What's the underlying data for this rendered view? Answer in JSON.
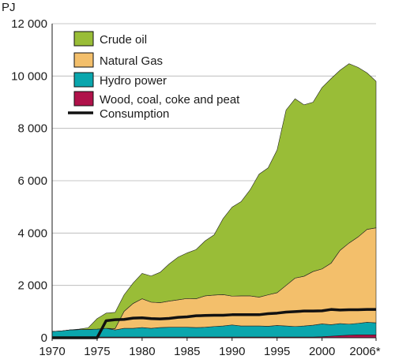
{
  "chart_data": {
    "type": "area",
    "ylabel": "PJ",
    "ylim": [
      0,
      12000
    ],
    "xlim": [
      1970,
      2006
    ],
    "yticks": [
      0,
      2000,
      4000,
      6000,
      8000,
      10000,
      12000
    ],
    "ytick_labels": [
      "0",
      "2 000",
      "4 000",
      "6 000",
      "8 000",
      "10 000",
      "12 000"
    ],
    "xticks": [
      1970,
      1975,
      1980,
      1985,
      1990,
      1995,
      2000,
      2006
    ],
    "xtick_labels": [
      "1970",
      "1975",
      "1980",
      "1985",
      "1990",
      "1995",
      "2000",
      "2006*"
    ],
    "grid": true,
    "legend_position": "top-left",
    "x": [
      1970,
      1971,
      1972,
      1973,
      1974,
      1975,
      1976,
      1977,
      1978,
      1979,
      1980,
      1981,
      1982,
      1983,
      1984,
      1985,
      1986,
      1987,
      1988,
      1989,
      1990,
      1991,
      1992,
      1993,
      1994,
      1995,
      1996,
      1997,
      1998,
      1999,
      2000,
      2001,
      2002,
      2003,
      2004,
      2005,
      2006
    ],
    "stacked_series": [
      {
        "name": "Wood, coal, coke and peat",
        "color": "#b0124a",
        "values": [
          30,
          30,
          30,
          30,
          30,
          30,
          30,
          30,
          30,
          30,
          30,
          30,
          30,
          30,
          30,
          30,
          30,
          30,
          30,
          30,
          30,
          30,
          30,
          30,
          30,
          30,
          30,
          30,
          30,
          30,
          40,
          60,
          80,
          100,
          110,
          110,
          110
        ]
      },
      {
        "name": "Hydro power",
        "color": "#0aa6ad",
        "values": [
          210,
          230,
          270,
          280,
          290,
          300,
          330,
          270,
          330,
          330,
          360,
          330,
          360,
          370,
          370,
          370,
          360,
          370,
          400,
          420,
          460,
          420,
          420,
          420,
          410,
          440,
          420,
          400,
          420,
          450,
          490,
          440,
          460,
          420,
          440,
          480,
          460
        ]
      },
      {
        "name": "Natural Gas",
        "color": "#f3bf6b",
        "values": [
          0,
          0,
          0,
          0,
          0,
          0,
          0,
          50,
          650,
          950,
          1100,
          1000,
          950,
          1000,
          1050,
          1100,
          1100,
          1200,
          1200,
          1200,
          1100,
          1150,
          1150,
          1100,
          1200,
          1250,
          1550,
          1850,
          1900,
          2050,
          2100,
          2350,
          2800,
          3100,
          3300,
          3550,
          3630
        ]
      },
      {
        "name": "Crude oil",
        "color": "#99bd37",
        "values": [
          0,
          0,
          0,
          20,
          60,
          400,
          580,
          620,
          630,
          780,
          970,
          1000,
          1160,
          1420,
          1630,
          1740,
          1880,
          2100,
          2300,
          2900,
          3400,
          3600,
          4050,
          4700,
          4850,
          5450,
          6700,
          6850,
          6550,
          6470,
          6930,
          7050,
          6880,
          6850,
          6480,
          5980,
          5600
        ]
      }
    ],
    "line_series": {
      "name": "Consumption",
      "color": "#111111",
      "values": [
        0,
        0,
        0,
        0,
        0,
        0,
        650,
        690,
        700,
        750,
        760,
        730,
        720,
        740,
        780,
        800,
        840,
        850,
        860,
        860,
        880,
        880,
        880,
        880,
        920,
        940,
        980,
        1000,
        1020,
        1020,
        1030,
        1080,
        1060,
        1070,
        1070,
        1080,
        1080
      ]
    }
  }
}
